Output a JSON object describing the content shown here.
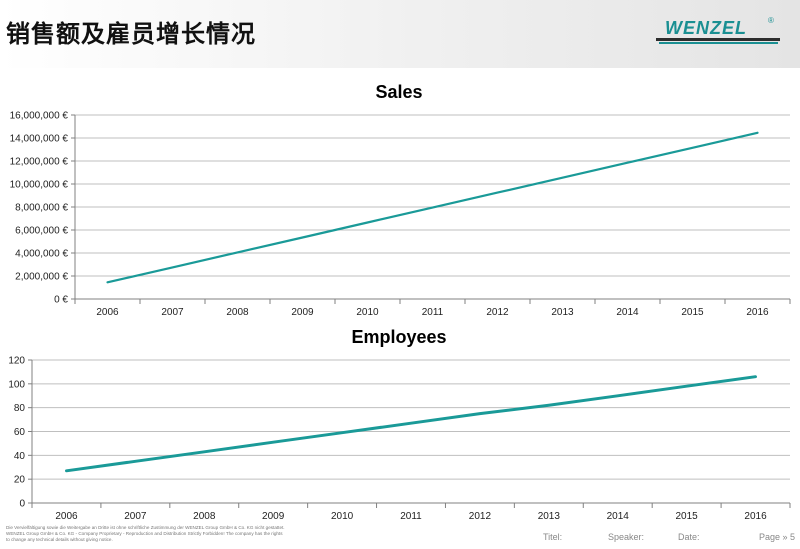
{
  "header": {
    "title": "销售额及雇员增长情况",
    "logo_text": "WENZEL",
    "logo_mark": "®"
  },
  "colors": {
    "line": "#1a9a98",
    "grid": "#bfbfbf",
    "axis": "#808080",
    "logo": "#1a8f92"
  },
  "chart_data": [
    {
      "type": "line",
      "title": "Sales",
      "xlabel": "",
      "ylabel": "",
      "categories": [
        "2006",
        "2007",
        "2008",
        "2009",
        "2010",
        "2011",
        "2012",
        "2013",
        "2014",
        "2015",
        "2016"
      ],
      "y_tick_labels": [
        "0 €",
        "2,000,000 €",
        "4,000,000 €",
        "6,000,000 €",
        "8,000,000 €",
        "10,000,000 €",
        "12,000,000 €",
        "14,000,000 €",
        "16,000,000 €"
      ],
      "ylim": [
        0,
        16000000
      ],
      "y_step": 2000000,
      "grid": true,
      "legend": "none",
      "series": [
        {
          "values": [
            1450000,
            2750000,
            4050000,
            5350000,
            6650000,
            7950000,
            9250000,
            10550000,
            11850000,
            13150000,
            14450000
          ]
        }
      ]
    },
    {
      "type": "line",
      "title": "Employees",
      "xlabel": "",
      "ylabel": "",
      "categories": [
        "2006",
        "2007",
        "2008",
        "2009",
        "2010",
        "2011",
        "2012",
        "2013",
        "2014",
        "2015",
        "2016"
      ],
      "y_tick_labels": [
        "0",
        "20",
        "40",
        "60",
        "80",
        "100",
        "120"
      ],
      "ylim": [
        0,
        120
      ],
      "y_step": 20,
      "grid": true,
      "legend": "none",
      "series": [
        {
          "values": [
            27,
            35,
            43,
            51,
            59,
            67,
            75,
            82,
            90,
            98,
            106
          ]
        }
      ]
    }
  ],
  "footer": {
    "disclaimer": [
      "Die Vervielfältigung sowie die Weitergabe an Dritte ist ohne schriftliche Zustimmung der WENZEL Group GmbH & Co. KG nicht gestattet.",
      "WENZEL Group GmbH & Co. KG - Company Proprietary - Reproduction and Distribution Strictly Forbidden! The company has the rights",
      "to change any technical details without giving notice."
    ],
    "titel_label": "Titel:",
    "speaker_label": "Speaker:",
    "date_label": "Date:",
    "page_label": "Page » 5"
  }
}
